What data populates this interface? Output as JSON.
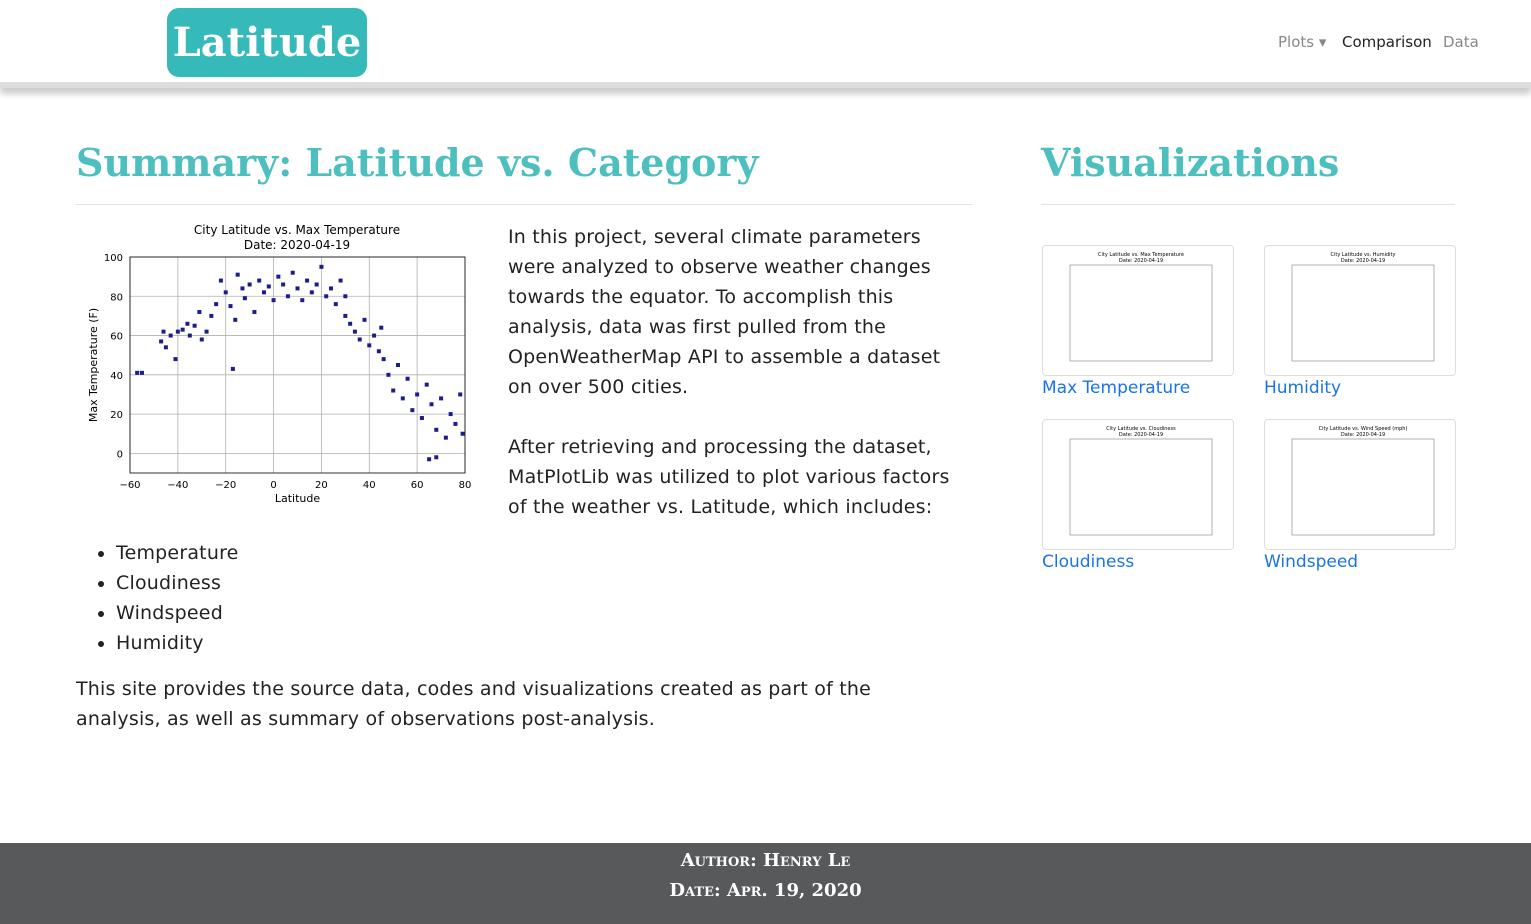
{
  "nav": {
    "brand": "Latitude",
    "links": [
      "Plots",
      "Comparison",
      "Data"
    ]
  },
  "summary": {
    "heading": "Summary: Latitude vs. Category",
    "figure": {
      "type": "scatter",
      "title": "City Latitude vs. Max Temperature",
      "subtitle": "Date: 2020-04-19",
      "x_label": "Latitude",
      "y_label": "Max Temperature (F)",
      "color": "#1c1c8c",
      "grid": true,
      "xlim": [
        -60,
        80
      ],
      "ylim": [
        -10,
        100
      ],
      "xticks": [
        {
          "value": -60,
          "label": "−60"
        },
        {
          "value": -40,
          "label": "−40"
        },
        {
          "value": -20,
          "label": "−20"
        },
        0,
        20,
        40,
        60,
        80
      ],
      "yticks": [
        0,
        20,
        40,
        60,
        80,
        100
      ],
      "x": [
        -57,
        -55,
        -47,
        -46,
        -45,
        -43,
        -41,
        -40,
        -38,
        -36,
        -35,
        -33,
        -31,
        -30,
        -28,
        -26,
        -24,
        -22,
        -20,
        -18,
        -16,
        -15,
        -13,
        -12,
        -10,
        -8,
        -6,
        -4,
        -2,
        0,
        2,
        4,
        6,
        8,
        10,
        12,
        14,
        16,
        18,
        20,
        22,
        24,
        26,
        28,
        30,
        32,
        34,
        36,
        38,
        40,
        42,
        44,
        46,
        48,
        50,
        52,
        54,
        56,
        58,
        60,
        62,
        64,
        66,
        68,
        70,
        72,
        74,
        76,
        78,
        79,
        65,
        68,
        45,
        30,
        -17
      ],
      "values": [
        41,
        41,
        57,
        62,
        54,
        60,
        48,
        62,
        63,
        66,
        60,
        65,
        72,
        58,
        62,
        70,
        76,
        88,
        82,
        75,
        68,
        91,
        84,
        79,
        86,
        72,
        88,
        82,
        85,
        78,
        90,
        86,
        80,
        92,
        84,
        78,
        88,
        82,
        86,
        95,
        80,
        84,
        76,
        88,
        70,
        66,
        62,
        58,
        68,
        55,
        60,
        52,
        48,
        40,
        32,
        45,
        28,
        38,
        22,
        30,
        18,
        35,
        25,
        12,
        28,
        8,
        20,
        15,
        30,
        10,
        -3,
        -2,
        64,
        80,
        43
      ]
    },
    "paragraphs": [
      "In this project, several climate parameters were analyzed to observe weather changes towards the equator. To accomplish this analysis, data was first pulled from the OpenWeatherMap API to assemble a dataset on over 500 cities.",
      "After retrieving and processing the dataset, MatPlotLib was utilized to plot various factors of the weather vs. Latitude, which includes:"
    ],
    "list": [
      "Temperature",
      "Cloudiness",
      "Windspeed",
      "Humidity"
    ],
    "closing": "This site provides the source data, codes and visualizations created as part of the analysis, as well as summary of observations post-analysis."
  },
  "visualizations": {
    "heading": "Visualizations",
    "items": [
      {
        "caption": "Max Temperature",
        "title": "City Latitude vs. Max Temperature",
        "subtitle": "Date: 2020-04-19"
      },
      {
        "caption": "Humidity",
        "title": "City Latitude vs. Humidity",
        "subtitle": "Date: 2020-04-19"
      },
      {
        "caption": "Cloudiness",
        "title": "City Latitude vs. Cloudiness",
        "subtitle": "Date: 2020-04-19"
      },
      {
        "caption": "Windspeed",
        "title": "City Latitude vs. Wind Speed (mph)",
        "subtitle": "Date: 2020-04-19"
      }
    ]
  },
  "footer": {
    "author": "Author: Henry Le",
    "date": "Date: Apr. 19, 2020"
  }
}
